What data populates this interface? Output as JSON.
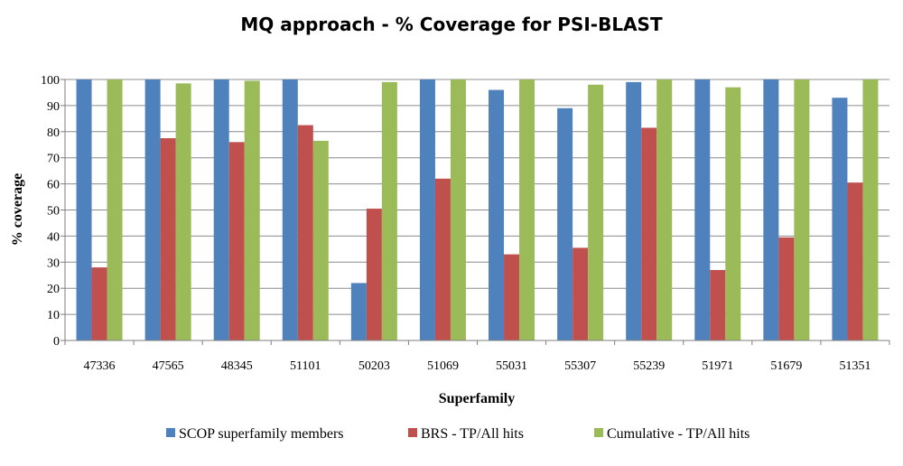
{
  "chart_data": {
    "type": "bar",
    "title": "MQ approach - % Coverage for PSI-BLAST",
    "xlabel": "Superfamily",
    "ylabel": "% coverage",
    "ylim": [
      0,
      100
    ],
    "yticks": [
      0,
      10,
      20,
      30,
      40,
      50,
      60,
      70,
      80,
      90,
      100
    ],
    "grid": "horizontal",
    "legend_position": "bottom",
    "categories": [
      "47336",
      "47565",
      "48345",
      "51101",
      "50203",
      "51069",
      "55031",
      "55307",
      "55239",
      "51971",
      "51679",
      "51351"
    ],
    "series": [
      {
        "name": "SCOP superfamily members",
        "color": "#4F81BD",
        "values": [
          100,
          100,
          100,
          100,
          22,
          100,
          96,
          89,
          99,
          100,
          100,
          93
        ]
      },
      {
        "name": "BRS - TP/All hits",
        "color": "#C0504D",
        "values": [
          28,
          77.5,
          76,
          82.5,
          50.5,
          62,
          33,
          35.5,
          81.5,
          27,
          39.5,
          60.5
        ]
      },
      {
        "name": "Cumulative - TP/All hits",
        "color": "#9BBB59",
        "values": [
          100,
          98.5,
          99.5,
          76.5,
          99,
          100,
          100,
          98,
          100,
          97,
          100,
          100
        ]
      }
    ]
  }
}
